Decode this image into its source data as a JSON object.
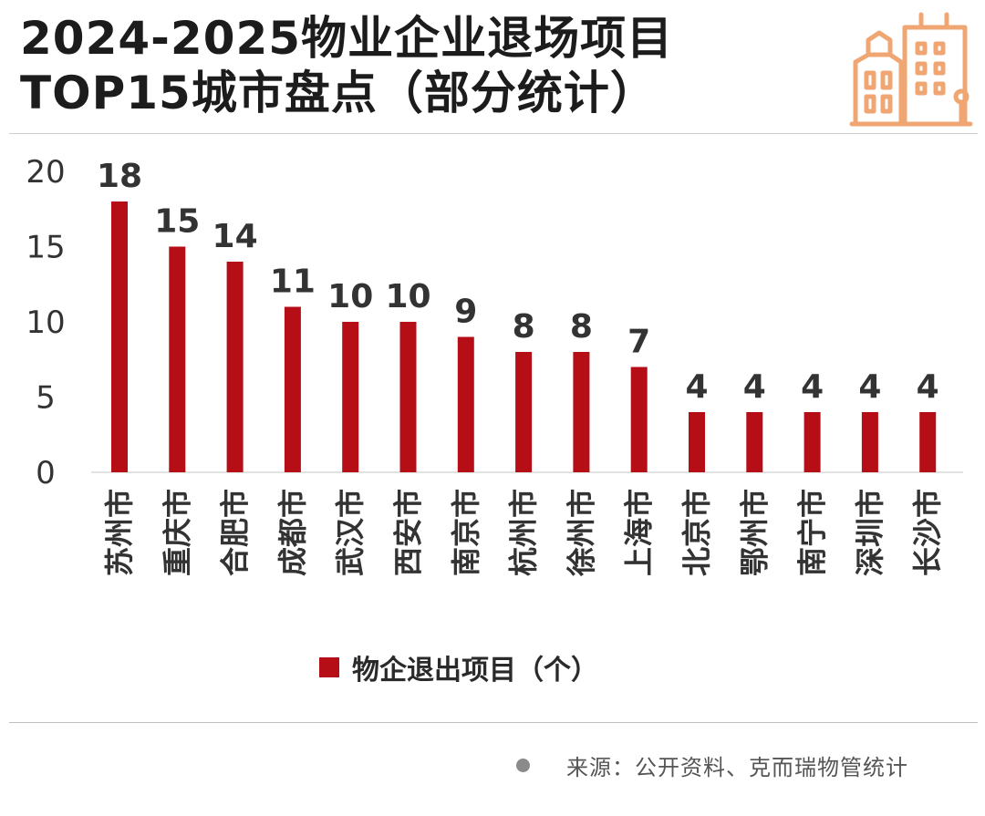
{
  "title": {
    "line1": "2024-2025物业企业退场项目",
    "line2": "TOP15城市盘点（部分统计）"
  },
  "logo": {
    "icon": "city-buildings-icon",
    "color": "#f0a673"
  },
  "colors": {
    "bar": "#b50e16",
    "axis_text": "#333333",
    "value_text": "#333333"
  },
  "chart_data": {
    "type": "bar",
    "title": "2024-2025物业企业退场项目 TOP15城市盘点（部分统计）",
    "categories": [
      "苏州市",
      "重庆市",
      "合肥市",
      "成都市",
      "武汉市",
      "西安市",
      "南京市",
      "杭州市",
      "徐州市",
      "上海市",
      "北京市",
      "鄂州市",
      "南宁市",
      "深圳市",
      "长沙市"
    ],
    "series": [
      {
        "name": "物企退出项目（个）",
        "values": [
          18,
          15,
          14,
          11,
          10,
          10,
          9,
          8,
          8,
          7,
          4,
          4,
          4,
          4,
          4
        ]
      }
    ],
    "yticks": [
      0,
      5,
      10,
      15,
      20
    ],
    "ylim": [
      0,
      20
    ],
    "grid": false,
    "data_labels": true,
    "legend_position": "bottom"
  },
  "legend": {
    "label": "物企退出项目（个）"
  },
  "source": {
    "text": "来源：公开资料、克而瑞物管统计"
  }
}
